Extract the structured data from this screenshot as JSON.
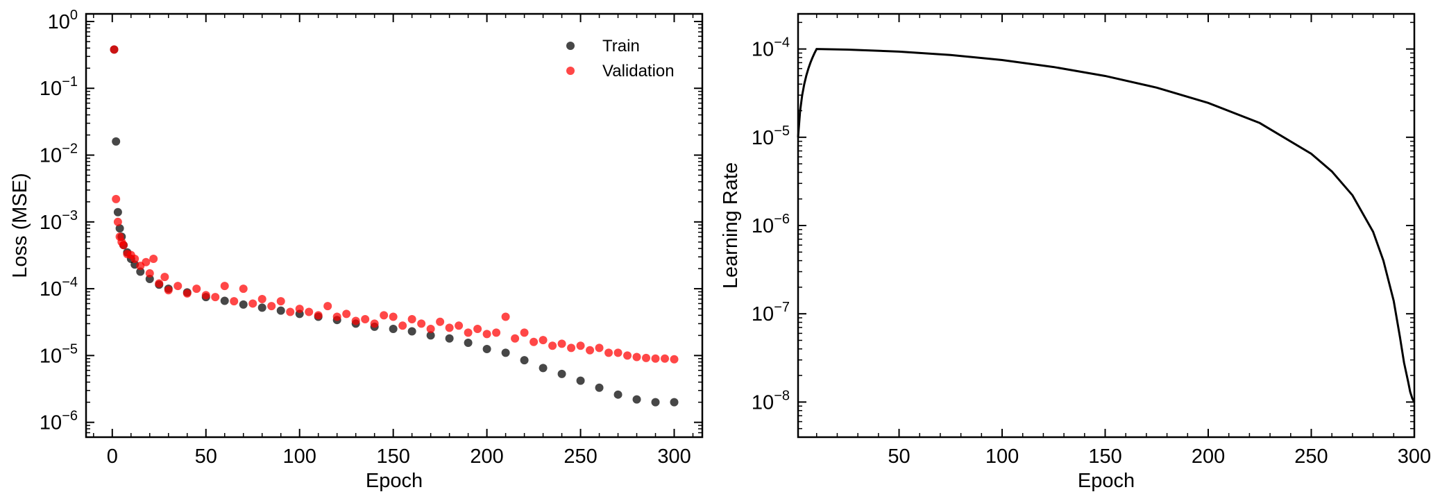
{
  "figure": {
    "left_panel": {
      "xlabel": "Epoch",
      "ylabel": "Loss (MSE)",
      "legend": {
        "placement": "top-right",
        "entries": [
          {
            "label": "Train",
            "color": "#000000"
          },
          {
            "label": "Validation",
            "color": "#ff0000"
          }
        ]
      }
    },
    "right_panel": {
      "xlabel": "Epoch",
      "ylabel": "Learning Rate"
    }
  },
  "chart_data": [
    {
      "type": "scatter",
      "title": "",
      "xlabel": "Epoch",
      "ylabel": "Loss (MSE)",
      "yscale": "log",
      "xlim": [
        -14,
        315
      ],
      "ylim": [
        6e-07,
        1.3
      ],
      "xticks": [
        0,
        50,
        100,
        150,
        200,
        250,
        300
      ],
      "xtick_labels": [
        "0",
        "50",
        "100",
        "150",
        "200",
        "250",
        "300"
      ],
      "yticks_exp": [
        -6,
        -5,
        -4,
        -3,
        -2,
        -1,
        0
      ],
      "ytick_labels": [
        "10",
        "10",
        "10",
        "10",
        "10",
        "10",
        "10"
      ],
      "ytick_exponents": [
        "−6",
        "−5",
        "−4",
        "−3",
        "−2",
        "−1",
        "0"
      ],
      "legend_placement": "top-right",
      "series": [
        {
          "name": "Train",
          "color": "#000000",
          "alpha": 0.72,
          "x": [
            1,
            2,
            3,
            4,
            5,
            6,
            8,
            10,
            12,
            15,
            20,
            25,
            30,
            40,
            50,
            60,
            70,
            80,
            90,
            100,
            110,
            120,
            130,
            140,
            150,
            160,
            170,
            180,
            190,
            200,
            210,
            220,
            230,
            240,
            250,
            260,
            270,
            280,
            290,
            300
          ],
          "y": [
            0.38,
            0.016,
            0.0014,
            0.0008,
            0.0006,
            0.00045,
            0.00035,
            0.00028,
            0.00023,
            0.00018,
            0.00014,
            0.000115,
            0.0001,
            8.8e-05,
            7.5e-05,
            6.6e-05,
            5.8e-05,
            5.2e-05,
            4.7e-05,
            4.2e-05,
            3.8e-05,
            3.4e-05,
            3e-05,
            2.7e-05,
            2.5e-05,
            2.3e-05,
            2e-05,
            1.8e-05,
            1.55e-05,
            1.25e-05,
            1.1e-05,
            8.5e-06,
            6.5e-06,
            5.3e-06,
            4.2e-06,
            3.3e-06,
            2.6e-06,
            2.2e-06,
            2e-06,
            2e-06
          ]
        },
        {
          "name": "Validation",
          "color": "#ff0000",
          "alpha": 0.72,
          "x": [
            1,
            2,
            3,
            4,
            5,
            6,
            8,
            10,
            12,
            15,
            18,
            20,
            22,
            25,
            28,
            30,
            35,
            40,
            45,
            50,
            55,
            60,
            65,
            70,
            75,
            80,
            85,
            90,
            95,
            100,
            105,
            110,
            115,
            120,
            125,
            130,
            135,
            140,
            145,
            150,
            155,
            160,
            165,
            170,
            175,
            180,
            185,
            190,
            195,
            200,
            205,
            210,
            215,
            220,
            225,
            230,
            235,
            240,
            245,
            250,
            255,
            260,
            265,
            270,
            275,
            280,
            285,
            290,
            295,
            300
          ],
          "y": [
            0.38,
            0.0022,
            0.001,
            0.0006,
            0.0005,
            0.00045,
            0.00033,
            0.00032,
            0.00028,
            0.00022,
            0.00025,
            0.00017,
            0.00028,
            0.00012,
            0.00015,
            9.5e-05,
            0.00011,
            8.5e-05,
            0.0001,
            8e-05,
            7.5e-05,
            0.00011,
            6.5e-05,
            0.0001,
            6e-05,
            7e-05,
            5.5e-05,
            6.5e-05,
            4.5e-05,
            5e-05,
            4.5e-05,
            4e-05,
            5.5e-05,
            3.8e-05,
            4.2e-05,
            3.3e-05,
            3.5e-05,
            3e-05,
            4e-05,
            3.8e-05,
            2.8e-05,
            3.5e-05,
            3e-05,
            2.5e-05,
            3.2e-05,
            2.6e-05,
            2.8e-05,
            2.2e-05,
            2.5e-05,
            2.1e-05,
            2.2e-05,
            3.8e-05,
            1.8e-05,
            2.2e-05,
            1.6e-05,
            1.7e-05,
            1.4e-05,
            1.5e-05,
            1.3e-05,
            1.4e-05,
            1.2e-05,
            1.3e-05,
            1.1e-05,
            1.1e-05,
            1e-05,
            9.5e-06,
            9.2e-06,
            9e-06,
            9e-06,
            8.8e-06
          ]
        }
      ]
    },
    {
      "type": "line",
      "title": "",
      "xlabel": "Epoch",
      "ylabel": "Learning Rate",
      "yscale": "log",
      "xlim": [
        1,
        300
      ],
      "ylim": [
        4e-09,
        0.00025
      ],
      "xticks": [
        50,
        100,
        150,
        200,
        250,
        300
      ],
      "xtick_labels": [
        "50",
        "100",
        "150",
        "200",
        "250",
        "300"
      ],
      "yticks_exp": [
        -8,
        -7,
        -6,
        -5,
        -4
      ],
      "ytick_labels": [
        "10",
        "10",
        "10",
        "10",
        "10"
      ],
      "ytick_exponents": [
        "−8",
        "−7",
        "−6",
        "−5",
        "−4"
      ],
      "series": [
        {
          "name": "Learning Rate",
          "color": "#000000",
          "x": [
            1,
            2,
            3,
            4,
            5,
            6,
            7,
            8,
            9,
            10,
            25,
            50,
            75,
            100,
            125,
            150,
            175,
            200,
            225,
            250,
            260,
            270,
            280,
            285,
            290,
            293,
            295,
            297,
            298,
            299,
            300
          ],
          "y": [
            1e-05,
            2e-05,
            3e-05,
            4e-05,
            5e-05,
            6e-05,
            7e-05,
            8e-05,
            9e-05,
            0.0001,
            9.85e-05,
            9.35e-05,
            8.55e-05,
            7.5e-05,
            6.25e-05,
            4.95e-05,
            3.65e-05,
            2.45e-05,
            1.45e-05,
            6.5e-06,
            4.1e-06,
            2.2e-06,
            8.5e-07,
            4e-07,
            1.4e-07,
            5.5e-08,
            2.8e-08,
            1.7e-08,
            1.3e-08,
            1.1e-08,
            1e-08
          ]
        }
      ]
    }
  ]
}
